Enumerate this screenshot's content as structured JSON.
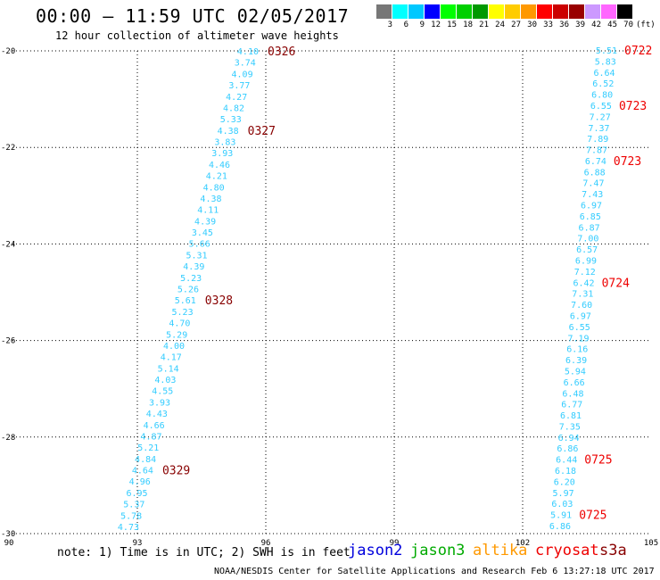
{
  "header": {
    "title": "00:00 – 11:59 UTC 02/05/2017",
    "subtitle": "12 hour collection of altimeter wave heights"
  },
  "legend": {
    "colors": [
      "#777777",
      "#00ffff",
      "#00c8ff",
      "#0000ff",
      "#00ff00",
      "#00d000",
      "#009900",
      "#ffff00",
      "#ffcc00",
      "#ff9900",
      "#ff0000",
      "#cc0000",
      "#990000",
      "#cc99ff",
      "#ff66ff",
      "#000000"
    ],
    "values": [
      "3",
      "6",
      "9",
      "12",
      "15",
      "18",
      "21",
      "24",
      "27",
      "30",
      "33",
      "36",
      "39",
      "42",
      "45",
      "70"
    ],
    "unit": "(ft)"
  },
  "axes": {
    "lon_ticks": [
      90,
      93,
      96,
      99,
      102,
      105
    ],
    "lat_ticks": [
      -20,
      -22,
      -24,
      -26,
      -28,
      -30
    ],
    "lon_range": [
      90,
      105
    ],
    "lat_range": [
      -30,
      -20
    ]
  },
  "colors": {
    "wave_text": "#33ccff",
    "time_label_dark": "#880000",
    "time_label_red": "#ee0000",
    "grid": "#000000"
  },
  "chart_data": {
    "type": "table",
    "tracks": [
      {
        "id": "track-1",
        "values": [
          "4.10",
          "3.74",
          "4.09",
          "3.77",
          "4.27",
          "4.82",
          "5.33",
          "4.38",
          "3.83",
          "3.93",
          "4.46",
          "4.21",
          "4.80",
          "4.38",
          "4.11",
          "4.39",
          "3.45",
          "5.66",
          "5.31",
          "4.39",
          "5.23",
          "5.26",
          "5.61",
          "5.23",
          "4.70",
          "5.29",
          "4.00",
          "4.17",
          "5.14",
          "4.03",
          "4.55",
          "3.93",
          "4.43",
          "4.66",
          "4.87",
          "5.21",
          "4.84",
          "4.64",
          "4.96",
          "6.95",
          "5.37",
          "5.78",
          "4.73"
        ],
        "times": [
          {
            "label": "0326",
            "index": 0
          },
          {
            "label": "0327",
            "index": 7
          },
          {
            "label": "0328",
            "index": 22
          },
          {
            "label": "0329",
            "index": 37
          }
        ]
      },
      {
        "id": "track-2",
        "values": [
          "5.51",
          "5.83",
          "6.64",
          "6.52",
          "6.80",
          "6.55",
          "7.27",
          "7.37",
          "7.89",
          "7.87",
          "6.74",
          "6.88",
          "7.47",
          "7.43",
          "6.97",
          "6.85",
          "6.87",
          "7.00",
          "6.57",
          "6.99",
          "7.12",
          "6.42",
          "7.31",
          "7.60",
          "6.97",
          "6.55",
          "7.19",
          "6.16",
          "6.39",
          "5.94",
          "6.66",
          "6.48",
          "6.77",
          "6.81",
          "7.35",
          "6.94",
          "6.86",
          "6.44",
          "6.18",
          "6.20",
          "5.97",
          "6.03",
          "5.91",
          "6.86"
        ],
        "times": [
          {
            "label": "0722",
            "index": 0
          },
          {
            "label": "0723",
            "index": 5
          },
          {
            "label": "0723",
            "index": 10
          },
          {
            "label": "0724",
            "index": 21
          },
          {
            "label": "0725",
            "index": 37
          },
          {
            "label": "0725",
            "index": 42
          }
        ]
      }
    ]
  },
  "footer": {
    "note": "note:  1) Time is in UTC;  2) SWH is in feet",
    "satellites": [
      {
        "name": "jason2",
        "color": "#0000dd"
      },
      {
        "name": "jason3",
        "color": "#00aa00"
      },
      {
        "name": "altika",
        "color": "#ff9900"
      },
      {
        "name": "cryosat",
        "color": "#ee0000"
      },
      {
        "name": "s3a",
        "color": "#880000"
      }
    ],
    "credit": "NOAA/NESDIS Center for Satellite Applications and Research    Feb  6 13:27:18 UTC 2017"
  }
}
